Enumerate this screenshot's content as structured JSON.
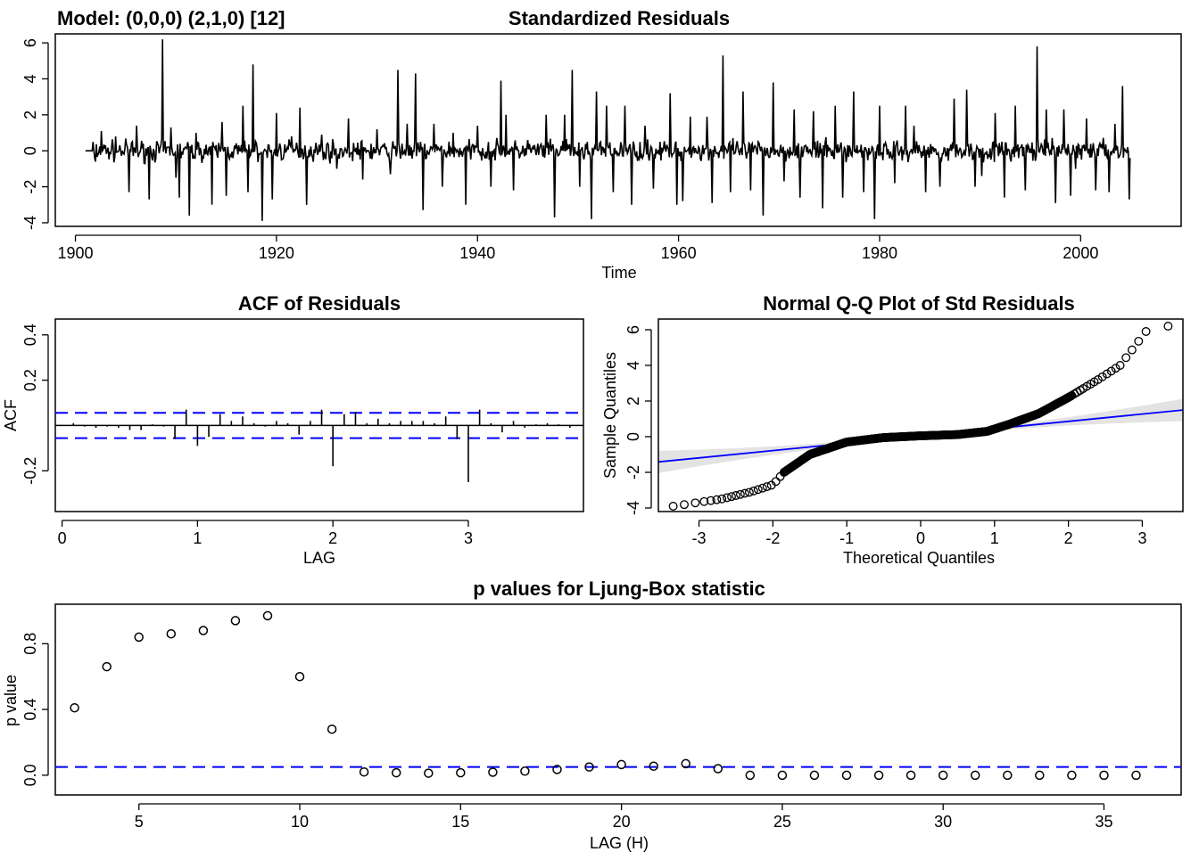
{
  "model_label": "Model: (0,0,0) (2,1,0) [12]",
  "chart_data": [
    {
      "id": "std_residuals",
      "type": "line",
      "title": "Standardized Residuals",
      "xlabel": "Time",
      "ylabel": "",
      "xlim": [
        1898,
        2010
      ],
      "ylim": [
        -4.2,
        6.5
      ],
      "xticks": [
        1900,
        1920,
        1940,
        1960,
        1980,
        2000
      ],
      "yticks": [
        -4,
        -2,
        0,
        2,
        4,
        6
      ],
      "start": 1901.0,
      "frequency": 12,
      "n": 1248,
      "note_series": "Approximate reconstruction: flat near 0 with spikes at the marked times",
      "spikes": [
        [
          1902.0,
          -0.6
        ],
        [
          1902.6,
          1.1
        ],
        [
          1904.0,
          0.8
        ],
        [
          1905.3,
          -2.3
        ],
        [
          1906.1,
          1.4
        ],
        [
          1907.3,
          -2.7
        ],
        [
          1908.7,
          6.2
        ],
        [
          1909.5,
          1.3
        ],
        [
          1910.0,
          -1.5
        ],
        [
          1910.3,
          -2.6
        ],
        [
          1911.3,
          -3.6
        ],
        [
          1912.0,
          1.0
        ],
        [
          1913.6,
          -3.0
        ],
        [
          1914.6,
          1.6
        ],
        [
          1915.0,
          -2.5
        ],
        [
          1916.7,
          2.5
        ],
        [
          1917.2,
          -2.3
        ],
        [
          1917.7,
          4.8
        ],
        [
          1918.6,
          -3.9
        ],
        [
          1919.6,
          -2.7
        ],
        [
          1920.0,
          2.1
        ],
        [
          1921.5,
          0.8
        ],
        [
          1922.3,
          2.4
        ],
        [
          1923.0,
          -3.0
        ],
        [
          1924.5,
          0.9
        ],
        [
          1926.0,
          -1.0
        ],
        [
          1927.2,
          1.8
        ],
        [
          1928.6,
          -1.6
        ],
        [
          1930.0,
          1.2
        ],
        [
          1931.3,
          -1.3
        ],
        [
          1932.1,
          4.5
        ],
        [
          1933.0,
          1.5
        ],
        [
          1933.8,
          4.3
        ],
        [
          1934.6,
          -3.3
        ],
        [
          1935.7,
          1.5
        ],
        [
          1936.5,
          -2.0
        ],
        [
          1937.6,
          1.0
        ],
        [
          1938.8,
          -3.0
        ],
        [
          1940.0,
          1.4
        ],
        [
          1941.3,
          -2.0
        ],
        [
          1942.3,
          3.9
        ],
        [
          1942.8,
          2.0
        ],
        [
          1943.6,
          -2.2
        ],
        [
          1945.0,
          0.6
        ],
        [
          1946.8,
          2.0
        ],
        [
          1947.7,
          -3.7
        ],
        [
          1948.7,
          2.0
        ],
        [
          1949.4,
          4.5
        ],
        [
          1950.2,
          -2.0
        ],
        [
          1951.3,
          -3.8
        ],
        [
          1951.8,
          3.3
        ],
        [
          1952.8,
          2.5
        ],
        [
          1953.5,
          -2.3
        ],
        [
          1954.7,
          2.5
        ],
        [
          1955.3,
          -3.0
        ],
        [
          1956.7,
          1.4
        ],
        [
          1957.5,
          -2.1
        ],
        [
          1959.2,
          3.2
        ],
        [
          1959.8,
          -3.0
        ],
        [
          1960.4,
          -2.8
        ],
        [
          1961.2,
          1.9
        ],
        [
          1962.8,
          1.9
        ],
        [
          1963.3,
          -2.9
        ],
        [
          1964.4,
          5.3
        ],
        [
          1965.2,
          -2.3
        ],
        [
          1966.4,
          3.3
        ],
        [
          1967.2,
          -2.2
        ],
        [
          1968.4,
          -3.6
        ],
        [
          1969.4,
          3.8
        ],
        [
          1970.5,
          -1.7
        ],
        [
          1971.5,
          2.3
        ],
        [
          1972.1,
          -2.6
        ],
        [
          1973.4,
          2.2
        ],
        [
          1974.3,
          -3.2
        ],
        [
          1975.6,
          2.5
        ],
        [
          1976.3,
          -2.6
        ],
        [
          1977.4,
          3.3
        ],
        [
          1978.4,
          -2.3
        ],
        [
          1979.5,
          -3.8
        ],
        [
          1980.0,
          2.5
        ],
        [
          1981.5,
          -1.8
        ],
        [
          1982.6,
          2.5
        ],
        [
          1983.4,
          1.4
        ],
        [
          1984.6,
          -2.3
        ],
        [
          1986.0,
          -2.0
        ],
        [
          1987.4,
          2.9
        ],
        [
          1988.7,
          3.4
        ],
        [
          1989.5,
          -2.0
        ],
        [
          1990.2,
          -1.4
        ],
        [
          1991.5,
          2.1
        ],
        [
          1992.4,
          -2.6
        ],
        [
          1993.5,
          2.5
        ],
        [
          1994.5,
          -2.2
        ],
        [
          1995.7,
          5.8
        ],
        [
          1996.6,
          2.3
        ],
        [
          1997.5,
          -2.9
        ],
        [
          1998.3,
          2.3
        ],
        [
          1999.0,
          -2.5
        ],
        [
          1999.5,
          -1.0
        ],
        [
          2000.6,
          1.8
        ],
        [
          2001.5,
          -2.2
        ],
        [
          2002.8,
          -2.3
        ],
        [
          2003.4,
          1.5
        ],
        [
          2004.2,
          3.6
        ],
        [
          2004.8,
          -2.7
        ]
      ]
    },
    {
      "id": "acf_residuals",
      "type": "bar",
      "title": "ACF of Residuals",
      "xlabel": "LAG",
      "ylabel": "ACF",
      "xlim": [
        -0.05,
        3.85
      ],
      "ylim": [
        -0.38,
        0.47
      ],
      "xticks": [
        0,
        1,
        2,
        3
      ],
      "yticks": [
        -0.2,
        0.2,
        0.4
      ],
      "confidence_bounds": [
        0.056,
        -0.056
      ],
      "bound_color": "#0000ff",
      "lags": [
        0.0833,
        0.1667,
        0.25,
        0.3333,
        0.4167,
        0.5,
        0.5833,
        0.6667,
        0.75,
        0.8333,
        0.9167,
        1.0,
        1.0833,
        1.1667,
        1.25,
        1.3333,
        1.4167,
        1.5,
        1.5833,
        1.6667,
        1.75,
        1.8333,
        1.9167,
        2.0,
        2.0833,
        2.1667,
        2.25,
        2.3333,
        2.4167,
        2.5,
        2.5833,
        2.6667,
        2.75,
        2.8333,
        2.9167,
        3.0,
        3.0833,
        3.1667,
        3.25,
        3.3333,
        3.4167,
        3.5,
        3.5833,
        3.6667,
        3.75
      ],
      "values": [
        0.01,
        -0.005,
        -0.01,
        -0.005,
        -0.01,
        -0.02,
        -0.02,
        0.005,
        -0.005,
        -0.06,
        0.07,
        -0.09,
        -0.05,
        0.05,
        0.02,
        0.04,
        0.01,
        -0.005,
        0.02,
        0.01,
        -0.04,
        0.02,
        0.07,
        -0.18,
        0.05,
        0.06,
        0.01,
        0.03,
        0.01,
        0.02,
        0.02,
        0.02,
        0.01,
        0.04,
        -0.06,
        -0.25,
        0.07,
        0.01,
        -0.03,
        0.02,
        -0.01,
        0.005,
        0.01,
        0.005,
        -0.01
      ]
    },
    {
      "id": "qq_plot",
      "type": "scatter",
      "title": "Normal Q-Q Plot of Std Residuals",
      "xlabel": "Theoretical Quantiles",
      "ylabel": "Sample Quantiles",
      "xlim": [
        -3.55,
        3.55
      ],
      "ylim": [
        -4.2,
        6.6
      ],
      "xticks": [
        -3,
        -2,
        -1,
        0,
        1,
        2,
        3
      ],
      "yticks": [
        -4,
        -2,
        0,
        2,
        4,
        6
      ],
      "reference_line": {
        "intercept": 0.04,
        "slope": 0.41,
        "color": "#0000ff"
      },
      "band_color": "#d9d9d9",
      "theoretical_range": [
        -3.35,
        3.35
      ],
      "profile": [
        [
          -3.35,
          -3.9
        ],
        [
          -2.7,
          -3.5
        ],
        [
          -2.3,
          -3.1
        ],
        [
          -2.0,
          -2.7
        ],
        [
          -1.85,
          -2.0
        ],
        [
          -1.5,
          -1.0
        ],
        [
          -1.0,
          -0.3
        ],
        [
          -0.5,
          -0.05
        ],
        [
          0.0,
          0.05
        ],
        [
          0.5,
          0.12
        ],
        [
          0.9,
          0.3
        ],
        [
          1.2,
          0.7
        ],
        [
          1.6,
          1.3
        ],
        [
          2.0,
          2.2
        ],
        [
          2.4,
          3.2
        ],
        [
          2.7,
          4.0
        ],
        [
          3.05,
          5.9
        ],
        [
          3.35,
          6.2
        ]
      ]
    },
    {
      "id": "ljung_box",
      "type": "scatter",
      "title": "p values for Ljung-Box statistic",
      "xlabel": "LAG (H)",
      "ylabel": "p value",
      "xlim": [
        2.4,
        37.4
      ],
      "ylim": [
        -0.12,
        1.04
      ],
      "xticks": [
        5,
        10,
        15,
        20,
        25,
        30,
        35
      ],
      "yticks": [
        0.0,
        0.4,
        0.8
      ],
      "threshold": 0.05,
      "threshold_color": "#0000ff",
      "x": [
        3,
        4,
        5,
        6,
        7,
        8,
        9,
        10,
        11,
        12,
        13,
        14,
        15,
        16,
        17,
        18,
        19,
        20,
        21,
        22,
        23,
        24,
        25,
        26,
        27,
        28,
        29,
        30,
        31,
        32,
        33,
        34,
        35,
        36
      ],
      "y": [
        0.41,
        0.66,
        0.84,
        0.86,
        0.88,
        0.94,
        0.97,
        0.6,
        0.28,
        0.02,
        0.015,
        0.012,
        0.015,
        0.018,
        0.025,
        0.035,
        0.05,
        0.065,
        0.055,
        0.07,
        0.04,
        0.0,
        0.0,
        0.0,
        0.0,
        0.0,
        0.0,
        0.0,
        0.0,
        0.0,
        0.0,
        0.0,
        0.0,
        0.0
      ]
    }
  ]
}
